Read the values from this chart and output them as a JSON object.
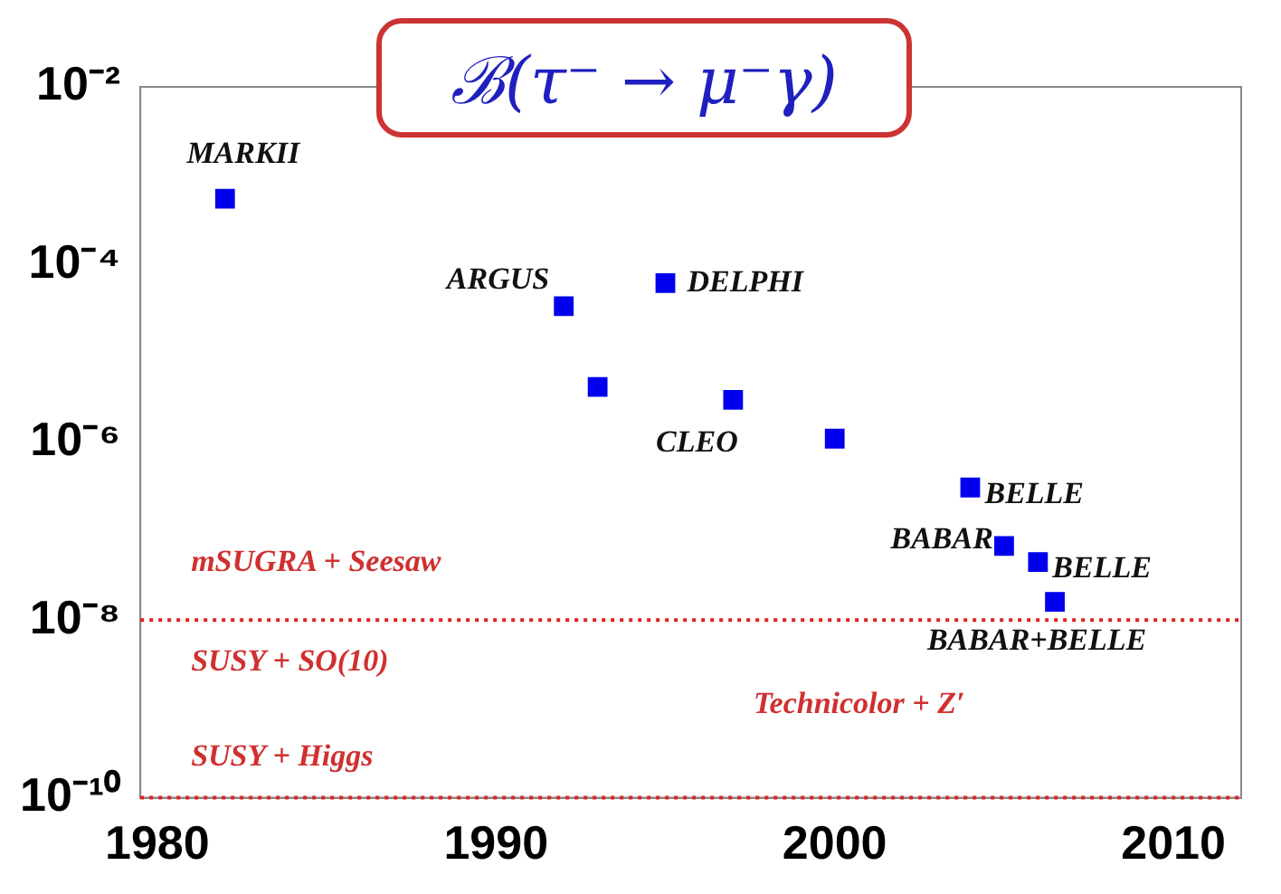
{
  "chart_data": {
    "type": "scatter",
    "title": "ℬ(τ⁻ → μ⁻γ)",
    "xlim": [
      1979.5,
      2012
    ],
    "xticks": [
      1980,
      1990,
      2000,
      2010
    ],
    "ylim": [
      1e-10,
      0.01
    ],
    "log": "y",
    "yticks": [
      {
        "value": 1e-10,
        "label": "10⁻¹⁰"
      },
      {
        "value": 1e-08,
        "label": "10⁻⁸"
      },
      {
        "value": 1e-06,
        "label": "10⁻⁶"
      },
      {
        "value": 0.0001,
        "label": "10⁻⁴"
      },
      {
        "value": 0.01,
        "label": "10⁻²"
      }
    ],
    "marker": "square",
    "grid": false,
    "legend": false,
    "series": [
      {
        "name": "MARKII",
        "color": "#0000ee",
        "x": [
          1982
        ],
        "values": [
          0.00055
        ]
      },
      {
        "name": "ARGUS",
        "color": "#0000ee",
        "x": [
          1992
        ],
        "values": [
          3.4e-05
        ]
      },
      {
        "name": "DELPHI",
        "color": "#0000ee",
        "x": [
          1995
        ],
        "values": [
          6.2e-05
        ]
      },
      {
        "name": "CLEO",
        "color": "#0000ee",
        "x": [
          1993,
          1997,
          2000
        ],
        "values": [
          4.2e-06,
          3e-06,
          1.1e-06
        ]
      },
      {
        "name": "BELLE",
        "color": "#0000ee",
        "x": [
          2004
        ],
        "values": [
          3.1e-07
        ]
      },
      {
        "name": "BABAR",
        "color": "#0000ee",
        "x": [
          2005
        ],
        "values": [
          6.8e-08
        ]
      },
      {
        "name": "BELLE",
        "color": "#0000ee",
        "x": [
          2006
        ],
        "values": [
          4.5e-08
        ]
      },
      {
        "name": "BABAR+BELLE",
        "color": "#0000ee",
        "x": [
          2006.5
        ],
        "values": [
          1.6e-08
        ]
      }
    ],
    "ref_lines": [
      {
        "axis": "y",
        "value": 1e-08,
        "color": "#dd2222",
        "line_style": "dotted"
      },
      {
        "axis": "y",
        "value": 1e-10,
        "color": "#dd2222",
        "line_style": "dotted"
      }
    ],
    "annotations": [
      "mSUGRA + Seesaw",
      "SUSY + SO(10)",
      "SUSY + Higgs",
      "Technicolor + Z′"
    ]
  }
}
